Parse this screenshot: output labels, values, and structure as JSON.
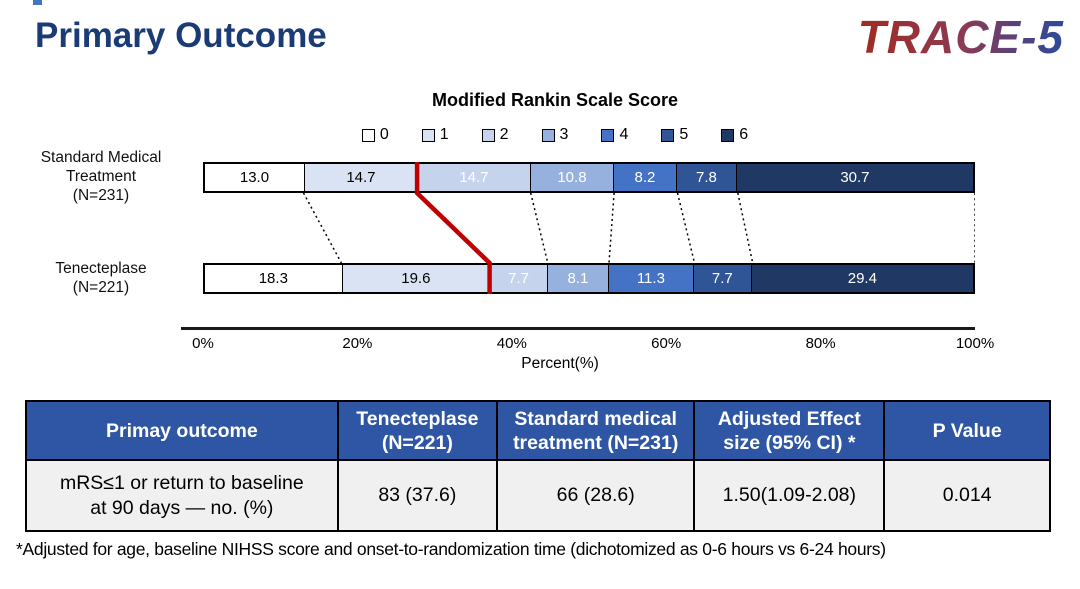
{
  "page": {
    "title": "Primary Outcome",
    "logo": "TRACE-5",
    "title_color": "#1B3B77"
  },
  "chart_data": {
    "type": "bar",
    "subtype": "horizontal-stacked-100pct",
    "title": "Modified Rankin Scale Score",
    "legend": [
      "0",
      "1",
      "2",
      "3",
      "4",
      "5",
      "6"
    ],
    "colors": [
      "#FFFFFF",
      "#DAE3F3",
      "#C5D3EC",
      "#97B1DE",
      "#4472C4",
      "#2F5597",
      "#1F3864"
    ],
    "series": [
      {
        "name": "Standard Medical\nTreatment\n(N=231)",
        "values": [
          13.0,
          14.7,
          14.7,
          10.8,
          8.2,
          7.8,
          30.7
        ]
      },
      {
        "name": "Tenecteplase\n(N=221)",
        "values": [
          18.3,
          19.6,
          7.7,
          8.1,
          11.3,
          7.7,
          29.4
        ]
      }
    ],
    "x_ticks": [
      "0%",
      "20%",
      "40%",
      "60%",
      "80%",
      "100%"
    ],
    "xlim": [
      0,
      100
    ],
    "xlabel": "Percent(%)",
    "red_divider_after_score": 1,
    "highlight_color": "#C00000",
    "connector_style": "dotted",
    "legend_position": "top"
  },
  "table": {
    "header_bg": "#2E56A5",
    "row_bg": "#F0F0F0",
    "headers": [
      "Primay outcome",
      "Tenecteplase\n(N=221)",
      "Standard medical\ntreatment (N=231)",
      "Adjusted Effect\nsize (95% CI) *",
      "P Value"
    ],
    "rows": [
      [
        "mRS≤1 or  return to baseline\nat 90 days — no. (%)",
        "83 (37.6)",
        "66 (28.6)",
        "1.50(1.09-2.08)",
        "0.014"
      ]
    ]
  },
  "footnote": "*Adjusted for age, baseline NIHSS score and onset-to-randomization time (dichotomized as 0-6 hours vs 6-24 hours)"
}
